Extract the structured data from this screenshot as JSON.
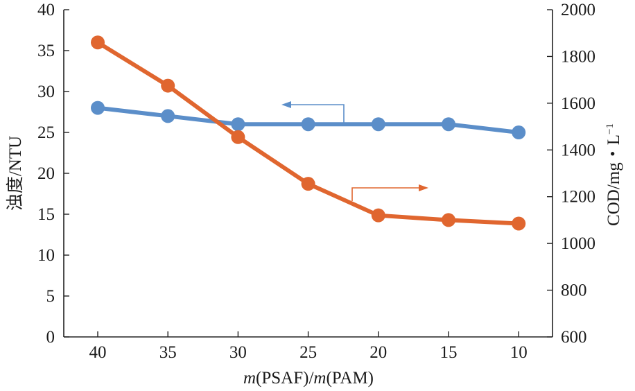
{
  "chart_data": {
    "type": "line",
    "categories": [
      "40",
      "35",
      "30",
      "25",
      "20",
      "15",
      "10"
    ],
    "xlabel": "m(PSAF)/m(PAM)",
    "xlabel_parts": {
      "italic1": "m",
      "text1": "(PSAF)/",
      "italic2": "m",
      "text2": "(PAM)"
    },
    "y_left": {
      "label": "浊度/NTU",
      "range": [
        0,
        40
      ],
      "ticks": [
        "0",
        "5",
        "10",
        "15",
        "20",
        "25",
        "30",
        "35",
        "40"
      ]
    },
    "y_right": {
      "label": "COD/mg・L⁻¹",
      "label_main": "COD/mg・L",
      "label_sup": "−1",
      "range": [
        600,
        2000
      ],
      "ticks": [
        "600",
        "800",
        "1000",
        "1200",
        "1400",
        "1600",
        "1800",
        "2000"
      ]
    },
    "series": [
      {
        "name": "浊度",
        "axis": "left",
        "color": "#5b8ec9",
        "values": [
          28,
          27,
          26,
          26,
          26,
          26,
          25
        ]
      },
      {
        "name": "COD",
        "axis": "right",
        "color": "#e0662f",
        "values": [
          1860,
          1675,
          1455,
          1255,
          1120,
          1100,
          1085
        ]
      }
    ],
    "annotations": [
      {
        "type": "arrow",
        "points_to": "left axis",
        "series": "浊度"
      },
      {
        "type": "arrow",
        "points_to": "right axis",
        "series": "COD"
      }
    ],
    "grid": false,
    "legend": "none"
  }
}
